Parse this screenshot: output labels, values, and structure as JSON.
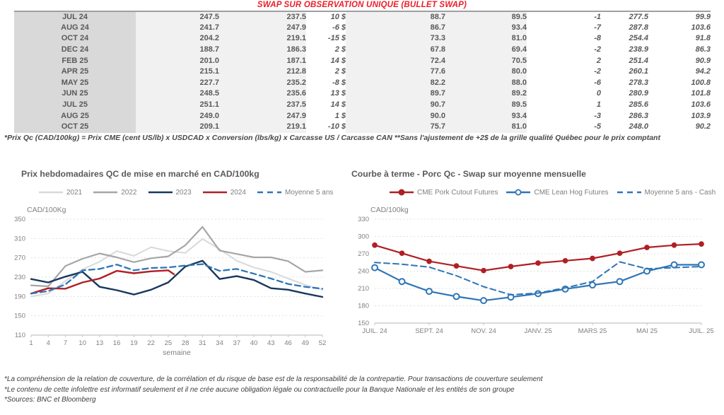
{
  "page": {
    "title": "SWAP SUR OBSERVATION UNIQUE (BULLET SWAP)",
    "table_footnote": "*Prix Qc (CAD/100kg) = Prix CME (cent US/lb) x USDCAD x Conversion (lbs/kg) x Carcasse US / Carcasse CAN **Sans l'ajustement de +2$ de la grille qualité Québec pour le prix comptant",
    "footer_lines": [
      "*La compréhension de la relation de couverture, de la corrélation et du risque de base est de la responsabilité de la contrepartie. Pour transactions de couverture seulement",
      "*Le contenu de cette infolettre est informatif seulement et il ne crée aucune obligation légale ou contractuelle pour la Banque Nationale et les entités de son groupe",
      "*Sources: BNC et Bloomberg"
    ]
  },
  "colors": {
    "title_red": "#ee1c25",
    "positive_green": "#00a651",
    "negative_red": "#ed1c24",
    "blue_numbers": "#20709f",
    "navy": "#17375d",
    "dark_red": "#b01f24",
    "steel_blue": "#2e75b6",
    "gray_2022": "#a6a6a6",
    "light_gray_2021": "#d9d9d9"
  },
  "table": {
    "rows": [
      [
        "JUL 24",
        "247.5",
        "237.5",
        "10 $",
        "88.7",
        "89.5",
        "-1",
        "277.5",
        "99.9"
      ],
      [
        "AUG 24",
        "241.7",
        "247.9",
        "-6 $",
        "86.7",
        "93.4",
        "-7",
        "287.8",
        "103.6"
      ],
      [
        "OCT 24",
        "204.2",
        "219.1",
        "-15 $",
        "73.3",
        "81.0",
        "-8",
        "254.4",
        "91.8"
      ],
      [
        "DEC 24",
        "188.7",
        "186.3",
        "2 $",
        "67.8",
        "69.4",
        "-2",
        "238.9",
        "86.3"
      ],
      [
        "FEB 25",
        "201.0",
        "187.1",
        "14 $",
        "72.4",
        "70.5",
        "2",
        "251.4",
        "90.9"
      ],
      [
        "APR 25",
        "215.1",
        "212.8",
        "2 $",
        "77.6",
        "80.0",
        "-2",
        "260.1",
        "94.2"
      ],
      [
        "MAY 25",
        "227.7",
        "235.2",
        "-8 $",
        "82.2",
        "88.0",
        "-6",
        "278.3",
        "100.8"
      ],
      [
        "JUN 25",
        "248.5",
        "235.6",
        "13 $",
        "89.7",
        "89.2",
        "0",
        "280.9",
        "101.8"
      ],
      [
        "JUL 25",
        "251.1",
        "237.5",
        "14 $",
        "90.7",
        "89.5",
        "1",
        "285.6",
        "103.6"
      ],
      [
        "AUG 25",
        "249.0",
        "247.9",
        "1 $",
        "90.0",
        "93.4",
        "-3",
        "286.3",
        "103.9"
      ],
      [
        "OCT 25",
        "209.1",
        "219.1",
        "-10 $",
        "75.7",
        "81.0",
        "-5",
        "248.0",
        "90.2"
      ]
    ]
  },
  "chart_data": [
    {
      "type": "line",
      "title": "Prix hebdomadaires QC de mise en marché en CAD/100kg",
      "y_label": "CAD/100Kg",
      "x_label": "semaine",
      "ylim": [
        110,
        350
      ],
      "ystep": 40,
      "xlim": [
        1,
        52
      ],
      "x_ticks": [
        1,
        4,
        7,
        10,
        13,
        16,
        19,
        22,
        25,
        28,
        31,
        34,
        37,
        40,
        43,
        46,
        49,
        52
      ],
      "grid": true,
      "legend_position": "top",
      "series": [
        {
          "name": "2021",
          "color": "#d9d9d9",
          "width": 2,
          "x": [
            1,
            4,
            7,
            10,
            13,
            16,
            19,
            22,
            25,
            28,
            31,
            34,
            37,
            40,
            43,
            46,
            49,
            52
          ],
          "values": [
            190,
            196,
            222,
            246,
            262,
            284,
            274,
            292,
            284,
            280,
            309,
            288,
            264,
            250,
            241,
            227,
            214,
            204
          ]
        },
        {
          "name": "2022",
          "color": "#a6a6a6",
          "width": 2.2,
          "x": [
            1,
            4,
            7,
            10,
            13,
            16,
            19,
            22,
            25,
            28,
            31,
            34,
            37,
            40,
            43,
            46,
            49,
            52
          ],
          "values": [
            213,
            211,
            253,
            268,
            279,
            271,
            261,
            269,
            273,
            296,
            334,
            285,
            278,
            271,
            271,
            263,
            241,
            244
          ]
        },
        {
          "name": "2023",
          "color": "#17375d",
          "width": 2.4,
          "x": [
            1,
            4,
            7,
            10,
            13,
            16,
            19,
            22,
            25,
            28,
            31,
            34,
            37,
            40,
            43,
            46,
            49,
            52
          ],
          "values": [
            226,
            219,
            231,
            241,
            210,
            203,
            194,
            204,
            219,
            252,
            264,
            226,
            232,
            224,
            207,
            204,
            196,
            189
          ]
        },
        {
          "name": "2024",
          "color": "#b01f24",
          "width": 2.4,
          "x": [
            1,
            4,
            7,
            10,
            13,
            16,
            19,
            22,
            25,
            26
          ],
          "values": [
            196,
            207,
            206,
            219,
            227,
            243,
            238,
            242,
            244,
            236
          ]
        },
        {
          "name": "Moyenne 5 ans",
          "color": "#2e75b6",
          "width": 2.3,
          "dash": true,
          "x": [
            1,
            4,
            7,
            10,
            13,
            16,
            19,
            22,
            25,
            28,
            31,
            34,
            37,
            40,
            43,
            46,
            49,
            52
          ],
          "values": [
            196,
            201,
            215,
            244,
            247,
            256,
            244,
            249,
            250,
            254,
            257,
            243,
            247,
            237,
            227,
            216,
            210,
            206
          ]
        }
      ]
    },
    {
      "type": "line",
      "title": "Courbe à terme - Porc Qc - Swap sur moyenne mensuelle",
      "y_label": "CAD/100kg",
      "x_label": "",
      "ylim": [
        150,
        330
      ],
      "ystep": 30,
      "xlim": [
        0,
        12
      ],
      "x_tick_positions": [
        0,
        2,
        4,
        6,
        8,
        10,
        12
      ],
      "x_tick_labels": [
        "JUIL. 24",
        "SEPT. 24",
        "NOV. 24",
        "JANV. 25",
        "MARS 25",
        "MAI 25",
        "JUIL. 25"
      ],
      "grid": true,
      "legend_position": "top",
      "series": [
        {
          "name": "CME Pork Cutout Futures",
          "color": "#b01f24",
          "width": 2.2,
          "marker": "filled",
          "x": [
            0,
            1,
            2,
            3,
            4,
            5,
            6,
            7,
            8,
            9,
            10,
            11,
            12
          ],
          "values": [
            285,
            271,
            257,
            249,
            241,
            248,
            254,
            258,
            262,
            271,
            281,
            285,
            287
          ]
        },
        {
          "name": "CME Lean Hog Futures",
          "color": "#2e75b6",
          "width": 2.2,
          "marker": "open",
          "x": [
            0,
            1,
            2,
            3,
            4,
            5,
            6,
            7,
            8,
            9,
            10,
            11,
            12
          ],
          "values": [
            246,
            222,
            205,
            196,
            189,
            195,
            201,
            209,
            216,
            222,
            240,
            251,
            251
          ]
        },
        {
          "name": "Moyenne 5 ans - Cash",
          "color": "#2e75b6",
          "width": 2,
          "dash": true,
          "x": [
            0,
            1,
            2,
            3,
            4,
            5,
            6,
            7,
            8,
            9,
            10,
            11,
            12
          ],
          "values": [
            255,
            252,
            247,
            232,
            213,
            199,
            202,
            211,
            222,
            256,
            244,
            246,
            248
          ]
        }
      ]
    }
  ]
}
